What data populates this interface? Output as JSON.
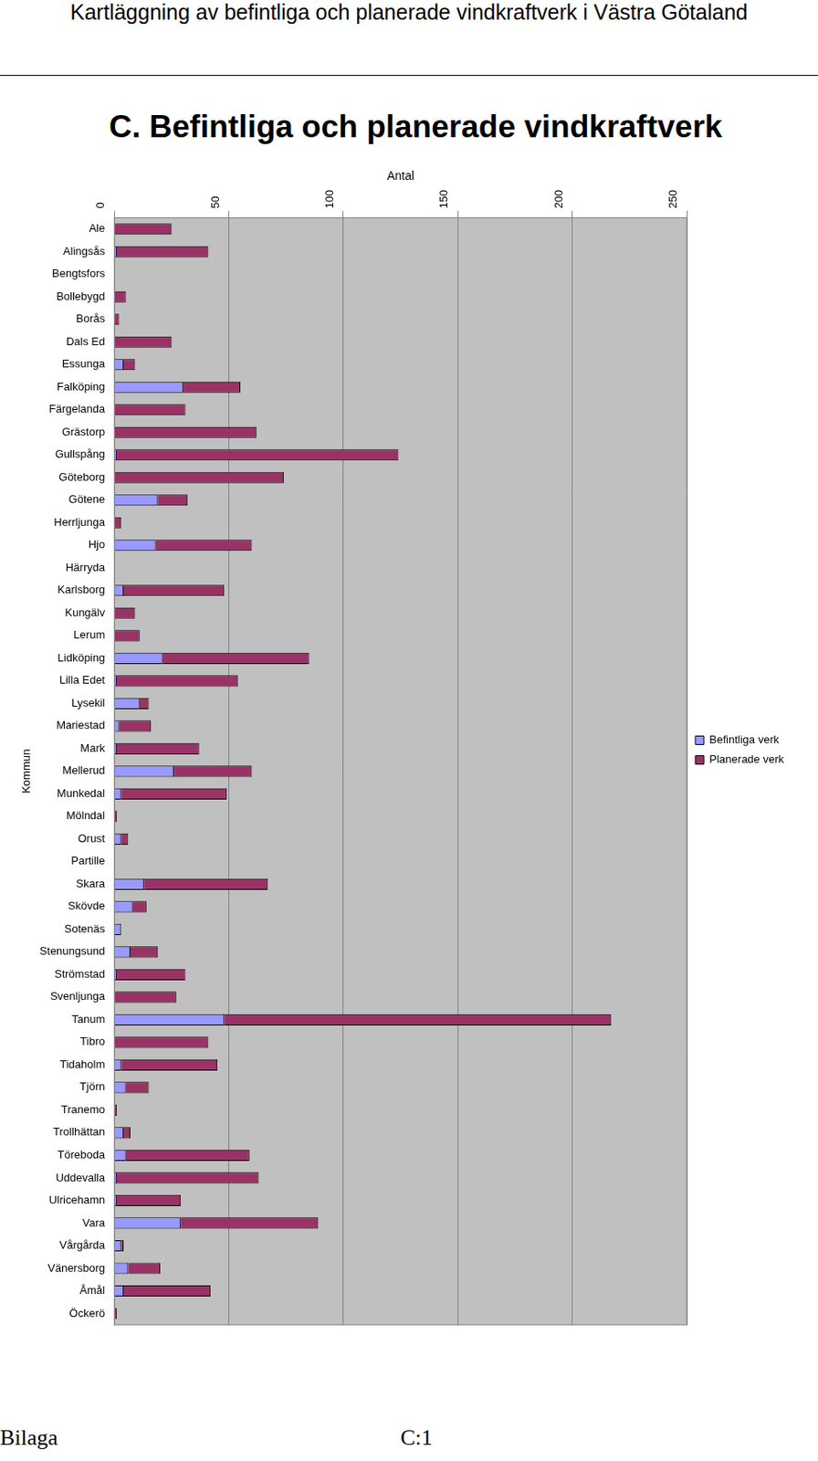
{
  "page": {
    "header": "Kartläggning av befintliga och planerade vindkraftverk i Västra Götaland",
    "footer_left": "Bilaga",
    "footer_right": "C:1"
  },
  "chart_data": {
    "type": "bar",
    "title": "C. Befintliga och planerade vindkraftverk",
    "x_label": "Antal",
    "y_label": "Kommun",
    "orientation": "horizontal",
    "stacked": true,
    "grid": true,
    "legend": "right",
    "xlim": [
      0,
      250
    ],
    "xticks": [
      0,
      50,
      100,
      150,
      200,
      250
    ],
    "categories": [
      "Ale",
      "Alingsås",
      "Bengtsfors",
      "Bollebygd",
      "Borås",
      "Dals Ed",
      "Essunga",
      "Falköping",
      "Färgelanda",
      "Grästorp",
      "Gullspång",
      "Göteborg",
      "Götene",
      "Herrljunga",
      "Hjo",
      "Härryda",
      "Karlsborg",
      "Kungälv",
      "Lerum",
      "Lidköping",
      "Lilla Edet",
      "Lysekil",
      "Mariestad",
      "Mark",
      "Mellerud",
      "Munkedal",
      "Mölndal",
      "Orust",
      "Partille",
      "Skara",
      "Skövde",
      "Sotenäs",
      "Stenungsund",
      "Strömstad",
      "Svenljunga",
      "Tanum",
      "Tibro",
      "Tidaholm",
      "Tjörn",
      "Tranemo",
      "Trollhättan",
      "Töreboda",
      "Uddevalla",
      "Ulricehamn",
      "Vara",
      "Vårgårda",
      "Vänersborg",
      "Åmål",
      "Öckerö"
    ],
    "series": [
      {
        "name": "Befintliga verk",
        "color": "#9999ff",
        "values": [
          0,
          1,
          0,
          0,
          0,
          0,
          4,
          30,
          0,
          0,
          1,
          0,
          19,
          0,
          18,
          0,
          4,
          0,
          0,
          21,
          1,
          11,
          2,
          1,
          26,
          3,
          0,
          3,
          0,
          13,
          8,
          3,
          7,
          1,
          0,
          48,
          0,
          3,
          5,
          0,
          4,
          5,
          1,
          1,
          29,
          3,
          6,
          4,
          0
        ]
      },
      {
        "name": "Planerade verk",
        "color": "#993366",
        "values": [
          25,
          40,
          0,
          5,
          2,
          25,
          5,
          25,
          31,
          62,
          123,
          74,
          13,
          3,
          42,
          0,
          44,
          9,
          11,
          64,
          53,
          4,
          14,
          36,
          34,
          46,
          1,
          3,
          0,
          54,
          6,
          0,
          12,
          30,
          27,
          169,
          41,
          42,
          10,
          1,
          3,
          54,
          62,
          28,
          60,
          1,
          14,
          38,
          1
        ]
      }
    ]
  }
}
